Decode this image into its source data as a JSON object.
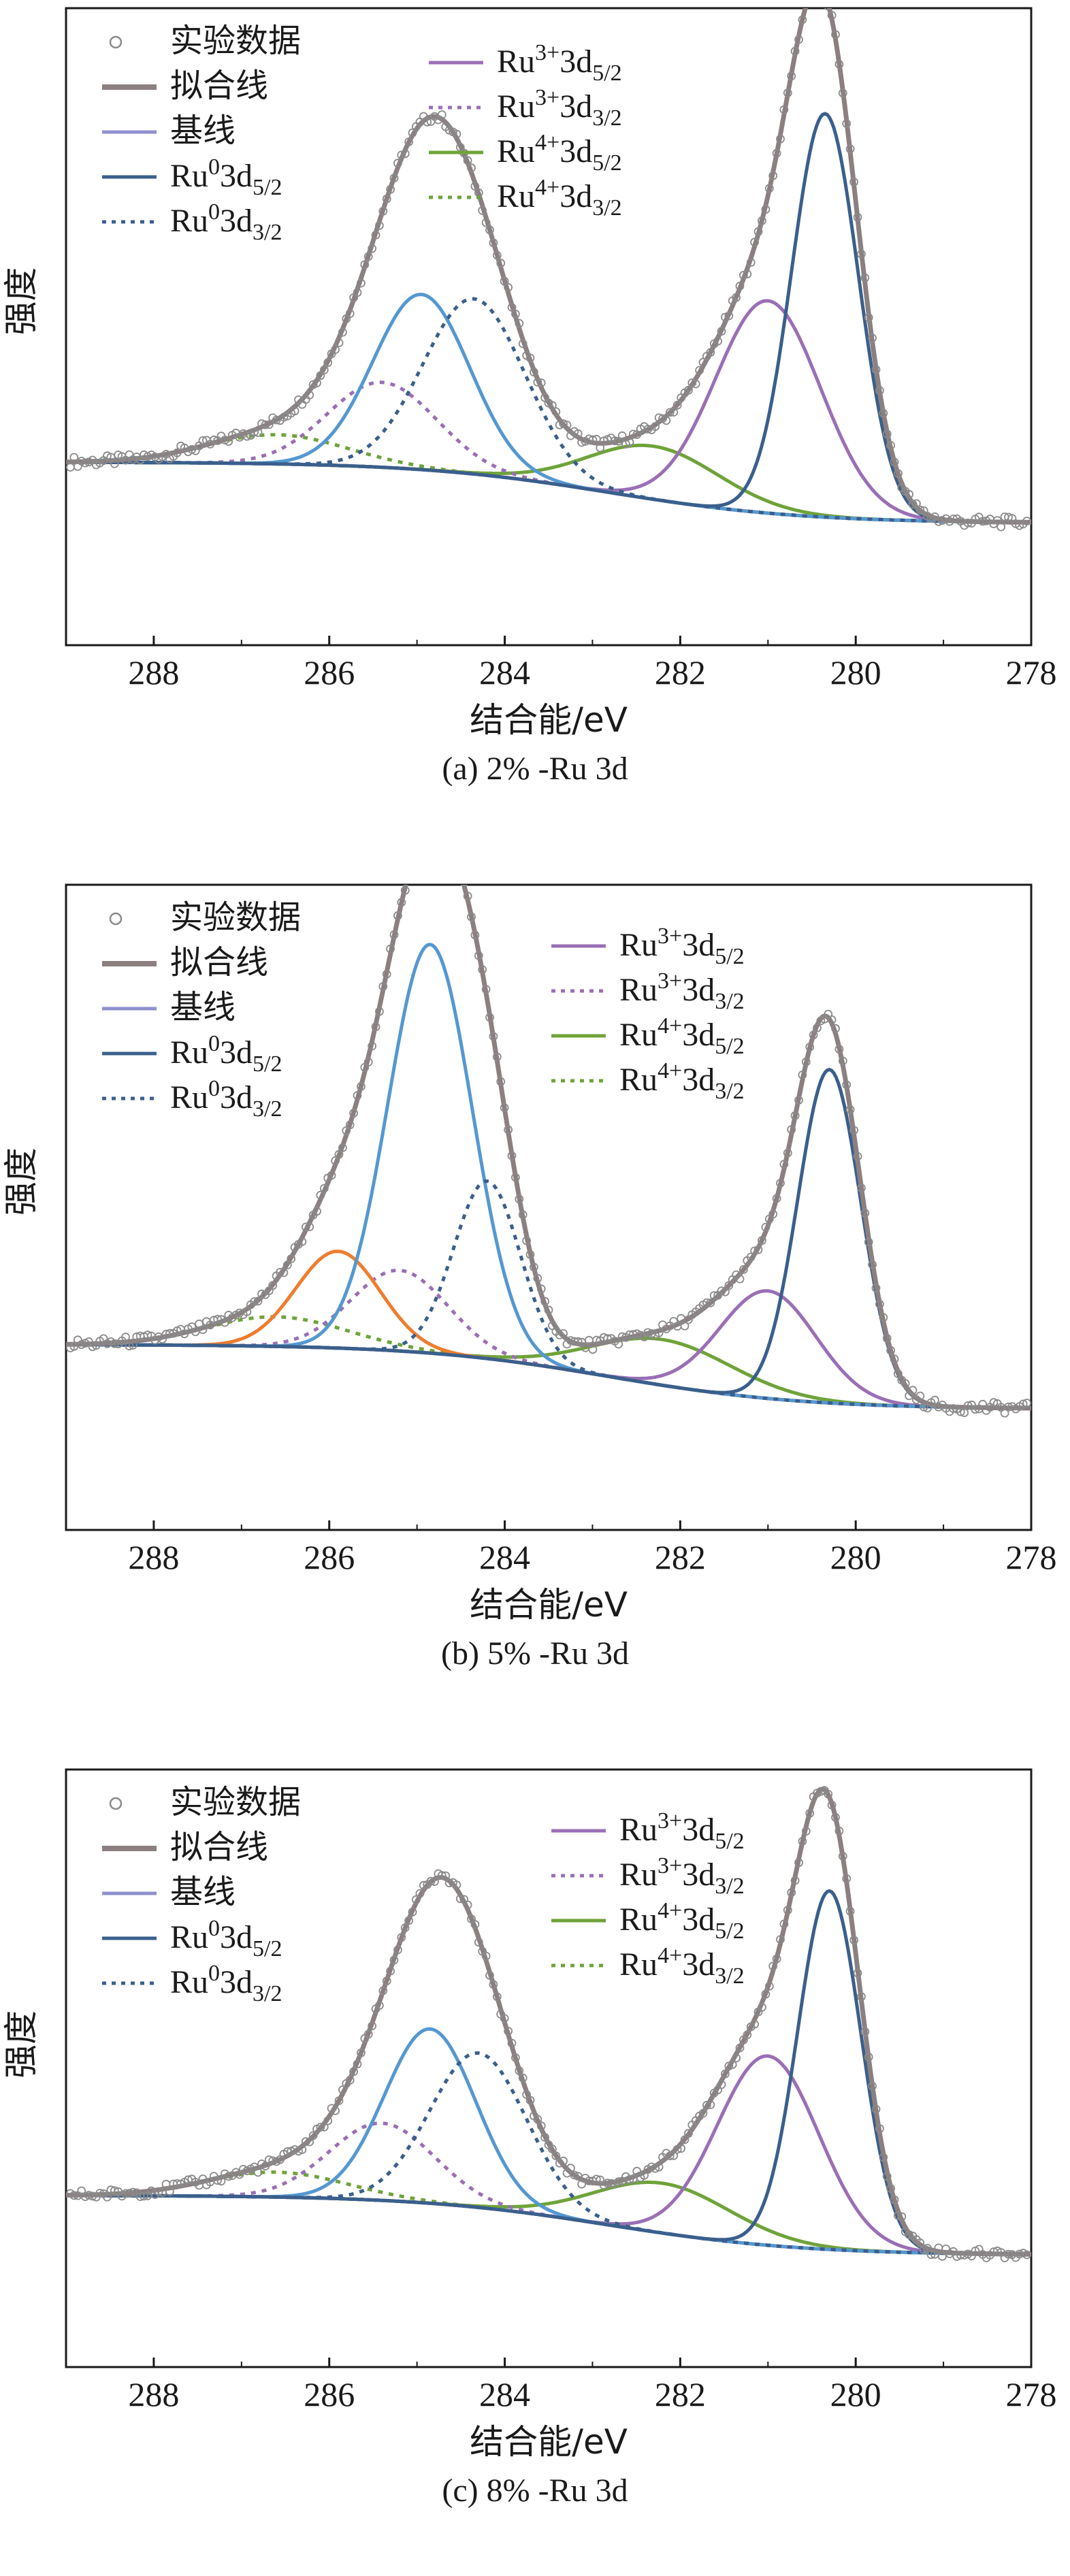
{
  "chart_data": [
    {
      "type": "line",
      "caption": "(a) 2% -Ru 3d",
      "xlabel": "结合能/eV",
      "ylabel": "强度",
      "x_ticks": [
        "288",
        "286",
        "284",
        "282",
        "280",
        "278"
      ],
      "xlim": [
        289,
        278
      ],
      "ylim": [
        0,
        1.2
      ],
      "baseline": {
        "start": 0.345,
        "end": 0.23
      },
      "peaks": {
        "ru0_52": {
          "center": 280.35,
          "height": 0.76,
          "width": 0.38
        },
        "ru0_32": {
          "center": 284.35,
          "height": 0.33,
          "width": 0.58
        },
        "ru3_52": {
          "center": 281.0,
          "height": 0.4,
          "width": 0.6
        },
        "ru3_32": {
          "center": 285.4,
          "height": 0.16,
          "width": 0.62
        },
        "ru4_52": {
          "center": 282.3,
          "height": 0.1,
          "width": 0.75
        },
        "ru4_32": {
          "center": 286.6,
          "height": 0.055,
          "width": 0.8
        },
        "blue_extra": {
          "center": 284.95,
          "height": 0.33,
          "width": 0.55
        }
      },
      "legend": {
        "col1": [
          {
            "key": "data",
            "label": "实验数据"
          },
          {
            "key": "fit",
            "label": "拟合线"
          },
          {
            "key": "base",
            "label": "基线"
          },
          {
            "key": "ru0_52",
            "label_main": "Ru",
            "sup": "0",
            "mid": "3d",
            "sub": "5/2"
          },
          {
            "key": "ru0_32",
            "label_main": "Ru",
            "sup": "0",
            "mid": "3d",
            "sub": "3/2"
          }
        ],
        "col2": [
          {
            "key": "ru3_52",
            "label_main": "Ru",
            "sup": "3+",
            "mid": "3d",
            "sub": "5/2"
          },
          {
            "key": "ru3_32",
            "label_main": "Ru",
            "sup": "3+",
            "mid": "3d",
            "sub": "3/2"
          },
          {
            "key": "ru4_52",
            "label_main": "Ru",
            "sup": "4+",
            "mid": "3d",
            "sub": "5/2"
          },
          {
            "key": "ru4_32",
            "label_main": "Ru",
            "sup": "4+",
            "mid": "3d",
            "sub": "3/2"
          }
        ]
      }
    },
    {
      "type": "line",
      "caption": "(b) 5% -Ru 3d",
      "xlabel": "结合能/eV",
      "ylabel": "强度",
      "x_ticks": [
        "288",
        "286",
        "284",
        "282",
        "280",
        "278"
      ],
      "xlim": [
        289,
        278
      ],
      "ylim": [
        0,
        1.2
      ],
      "baseline": {
        "start": 0.345,
        "end": 0.225
      },
      "peaks": {
        "ru0_52": {
          "center": 280.3,
          "height": 0.62,
          "width": 0.36
        },
        "ru0_32": {
          "center": 284.2,
          "height": 0.33,
          "width": 0.38
        },
        "ru3_52": {
          "center": 281.0,
          "height": 0.2,
          "width": 0.55
        },
        "ru3_32": {
          "center": 285.2,
          "height": 0.15,
          "width": 0.55
        },
        "ru4_52": {
          "center": 282.2,
          "height": 0.085,
          "width": 0.8
        },
        "ru4_32": {
          "center": 286.6,
          "height": 0.055,
          "width": 0.8
        },
        "blue_extra": {
          "center": 284.85,
          "height": 0.76,
          "width": 0.48
        },
        "orange": {
          "center": 285.9,
          "height": 0.18,
          "width": 0.48
        }
      },
      "legend": {
        "col1": [
          {
            "key": "data",
            "label": "实验数据"
          },
          {
            "key": "fit",
            "label": "拟合线"
          },
          {
            "key": "base",
            "label": "基线"
          },
          {
            "key": "ru0_52",
            "label_main": "Ru",
            "sup": "0",
            "mid": "3d",
            "sub": "5/2"
          },
          {
            "key": "ru0_32",
            "label_main": "Ru",
            "sup": "0",
            "mid": "3d",
            "sub": "3/2"
          }
        ],
        "col2": [
          {
            "key": "ru3_52",
            "label_main": "Ru",
            "sup": "3+",
            "mid": "3d",
            "sub": "5/2"
          },
          {
            "key": "ru3_32",
            "label_main": "Ru",
            "sup": "3+",
            "mid": "3d",
            "sub": "3/2"
          },
          {
            "key": "ru4_52",
            "label_main": "Ru",
            "sup": "4+",
            "mid": "3d",
            "sub": "5/2"
          },
          {
            "key": "ru4_32",
            "label_main": "Ru",
            "sup": "4+",
            "mid": "3d",
            "sub": "3/2"
          }
        ]
      }
    },
    {
      "type": "line",
      "caption": "(c) 8% -Ru 3d",
      "xlabel": "结合能/eV",
      "ylabel": "强度",
      "x_ticks": [
        "288",
        "286",
        "284",
        "282",
        "280",
        "278"
      ],
      "xlim": [
        289,
        278
      ],
      "ylim": [
        0,
        1.2
      ],
      "baseline": {
        "start": 0.345,
        "end": 0.225
      },
      "peaks": {
        "ru0_52": {
          "center": 280.3,
          "height": 0.72,
          "width": 0.36
        },
        "ru0_32": {
          "center": 284.3,
          "height": 0.31,
          "width": 0.55
        },
        "ru3_52": {
          "center": 281.0,
          "height": 0.38,
          "width": 0.58
        },
        "ru3_32": {
          "center": 285.4,
          "height": 0.155,
          "width": 0.6
        },
        "ru4_52": {
          "center": 282.2,
          "height": 0.1,
          "width": 0.78
        },
        "ru4_32": {
          "center": 286.6,
          "height": 0.05,
          "width": 0.8
        },
        "blue_extra": {
          "center": 284.85,
          "height": 0.35,
          "width": 0.52
        }
      },
      "legend": {
        "col1": [
          {
            "key": "data",
            "label": "实验数据"
          },
          {
            "key": "fit",
            "label": "拟合线"
          },
          {
            "key": "base",
            "label": "基线"
          },
          {
            "key": "ru0_52",
            "label_main": "Ru",
            "sup": "0",
            "mid": "3d",
            "sub": "5/2"
          },
          {
            "key": "ru0_32",
            "label_main": "Ru",
            "sup": "0",
            "mid": "3d",
            "sub": "3/2"
          }
        ],
        "col2": [
          {
            "key": "ru3_52",
            "label_main": "Ru",
            "sup": "3+",
            "mid": "3d",
            "sub": "5/2"
          },
          {
            "key": "ru3_32",
            "label_main": "Ru",
            "sup": "3+",
            "mid": "3d",
            "sub": "3/2"
          },
          {
            "key": "ru4_52",
            "label_main": "Ru",
            "sup": "4+",
            "mid": "3d",
            "sub": "5/2"
          },
          {
            "key": "ru4_32",
            "label_main": "Ru",
            "sup": "4+",
            "mid": "3d",
            "sub": "3/2"
          }
        ]
      }
    }
  ],
  "colors": {
    "data": "#8a8a8a",
    "fit": "#8b7f80",
    "base": "#8f8fcf",
    "ru0": "#3a5f8c",
    "blue_extra": "#5598d0",
    "ru3": "#9a6fb5",
    "ru4": "#6fa33a",
    "orange": "#ee7d2e"
  }
}
